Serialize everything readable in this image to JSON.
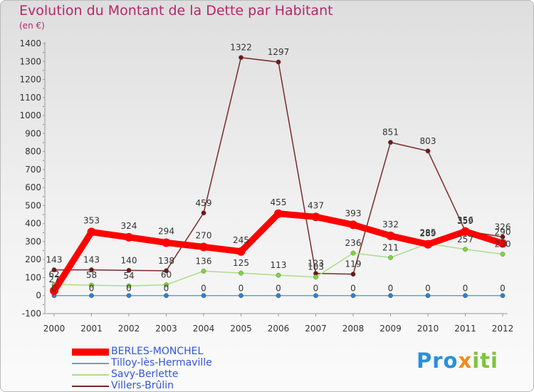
{
  "chart_data": {
    "type": "line",
    "title": "Evolution du Montant de la Dette par Habitant",
    "subtitle": "(en €)",
    "xlabel": "",
    "ylabel": "",
    "categories": [
      "2000",
      "2001",
      "2002",
      "2003",
      "2004",
      "2005",
      "2006",
      "2007",
      "2008",
      "2009",
      "2010",
      "2011",
      "2012"
    ],
    "ylim": [
      -100,
      1400
    ],
    "yticks": [
      -100,
      0,
      100,
      200,
      300,
      400,
      500,
      600,
      700,
      800,
      900,
      1000,
      1100,
      1200,
      1300,
      1400
    ],
    "grid": false,
    "legend_position": "bottom-left",
    "series": [
      {
        "name": "BERLES-MONCHEL",
        "color": "#ff0000",
        "marker_color": "#ff0000",
        "style": "thick",
        "values": [
          27,
          353,
          324,
          294,
          270,
          245,
          455,
          437,
          393,
          332,
          285,
          356,
          290
        ]
      },
      {
        "name": "Tilloy-lès-Hermaville",
        "color": "#6aa0c8",
        "marker_color": "#2c7fd0",
        "style": "thin",
        "values": [
          0,
          0,
          0,
          0,
          0,
          0,
          0,
          0,
          0,
          0,
          0,
          0,
          0
        ]
      },
      {
        "name": "Savy-Berlette",
        "color": "#aade88",
        "marker_color": "#7ed63c",
        "style": "thin",
        "values": [
          62,
          58,
          54,
          60,
          136,
          125,
          113,
          103,
          236,
          211,
          289,
          257,
          230
        ]
      },
      {
        "name": "Villers-Brûlin",
        "color": "#7a2a2a",
        "marker_color": "#6e1818",
        "style": "thin",
        "values": [
          143,
          143,
          140,
          138,
          459,
          1322,
          1297,
          123,
          119,
          851,
          803,
          359,
          326
        ]
      }
    ]
  },
  "logo": {
    "text_parts": [
      "Pro",
      "x",
      "iti"
    ],
    "colors": [
      "#2a8fd8",
      "#f28a1e",
      "#7ec43a"
    ]
  }
}
